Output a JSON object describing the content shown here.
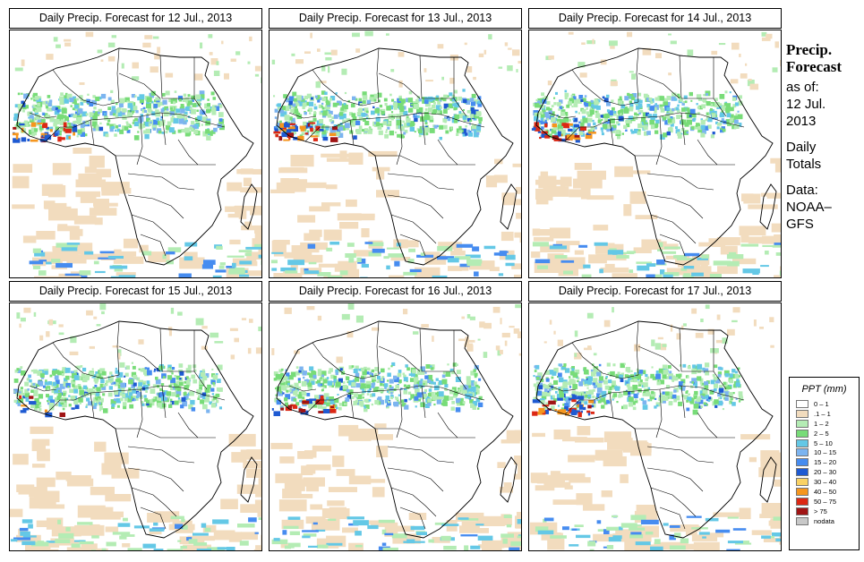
{
  "panels": [
    {
      "title": "Daily Precip. Forecast for  12 Jul., 2013",
      "heavy": 0.9
    },
    {
      "title": "Daily Precip. Forecast for  13 Jul., 2013",
      "heavy": 1.0
    },
    {
      "title": "Daily Precip. Forecast for  14 Jul., 2013",
      "heavy": 0.8
    },
    {
      "title": "Daily Precip. Forecast for  15 Jul., 2013",
      "heavy": 0.3
    },
    {
      "title": "Daily Precip. Forecast for  16 Jul., 2013",
      "heavy": 0.6
    },
    {
      "title": "Daily Precip. Forecast for  17 Jul., 2013",
      "heavy": 0.9
    }
  ],
  "sidebar": {
    "heading_1": "Precip.",
    "heading_2": "Forecast",
    "asof_1": "as of:",
    "asof_2": "12 Jul.",
    "asof_3": "2013",
    "totals_1": "Daily",
    "totals_2": "Totals",
    "data_1": "Data:",
    "data_2": "NOAA–",
    "data_3": "GFS"
  },
  "legend": {
    "title": "PPT (mm)",
    "items": [
      {
        "label": "0 – 1",
        "color": "#ffffff"
      },
      {
        "label": ".1 – 1",
        "color": "#f2dcbe"
      },
      {
        "label": "1 – 2",
        "color": "#b4ecb4"
      },
      {
        "label": "2 – 5",
        "color": "#78dc78"
      },
      {
        "label": "5 – 10",
        "color": "#64c8e6"
      },
      {
        "label": "10 – 15",
        "color": "#7cb4f0"
      },
      {
        "label": "15 – 20",
        "color": "#468cf0"
      },
      {
        "label": "20 – 30",
        "color": "#1e5ad2"
      },
      {
        "label": "30 – 40",
        "color": "#fad264"
      },
      {
        "label": "40 – 50",
        "color": "#f5961e"
      },
      {
        "label": "50 – 75",
        "color": "#dc2814"
      },
      {
        "label": "> 75",
        "color": "#a01414"
      },
      {
        "label": "nodata",
        "color": "#c8c8c8"
      }
    ]
  }
}
